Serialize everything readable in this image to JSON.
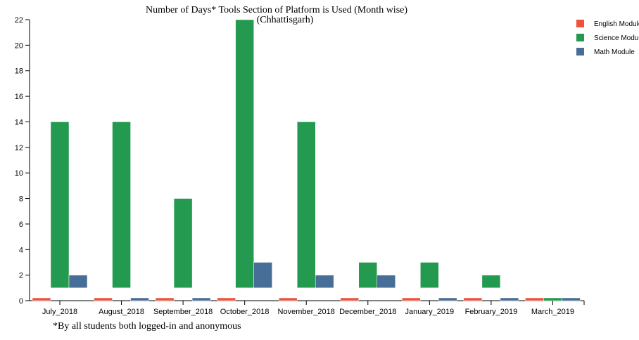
{
  "chart_data": {
    "type": "bar",
    "title": "Number of Days* Tools Section of Platform is Used (Month wise)",
    "subtitle": "(Chhattisgarh)",
    "footnote": "*By all students both logged-in and anonymous",
    "categories": [
      "July_2018",
      "August_2018",
      "September_2018",
      "October_2018",
      "November_2018",
      "December_2018",
      "January_2019",
      "February_2019",
      "March_2019"
    ],
    "series": [
      {
        "name": "English Module",
        "color": "#f0513c",
        "values": [
          0,
          0,
          0,
          0,
          0,
          0,
          0,
          0,
          0
        ]
      },
      {
        "name": "Science Module",
        "color": "#239a4f",
        "values": [
          13,
          13,
          7,
          21,
          13,
          2,
          2,
          1,
          0
        ]
      },
      {
        "name": "Math Module",
        "color": "#476e96",
        "values": [
          1,
          0,
          0,
          2,
          1,
          1,
          0,
          0,
          0
        ]
      }
    ],
    "ylim": [
      0,
      22
    ],
    "yticks": [
      0,
      2,
      4,
      6,
      8,
      10,
      12,
      14,
      16,
      18,
      20,
      22
    ],
    "xlabel": "",
    "ylabel": "",
    "grid": false,
    "legend_position": "top-right"
  }
}
